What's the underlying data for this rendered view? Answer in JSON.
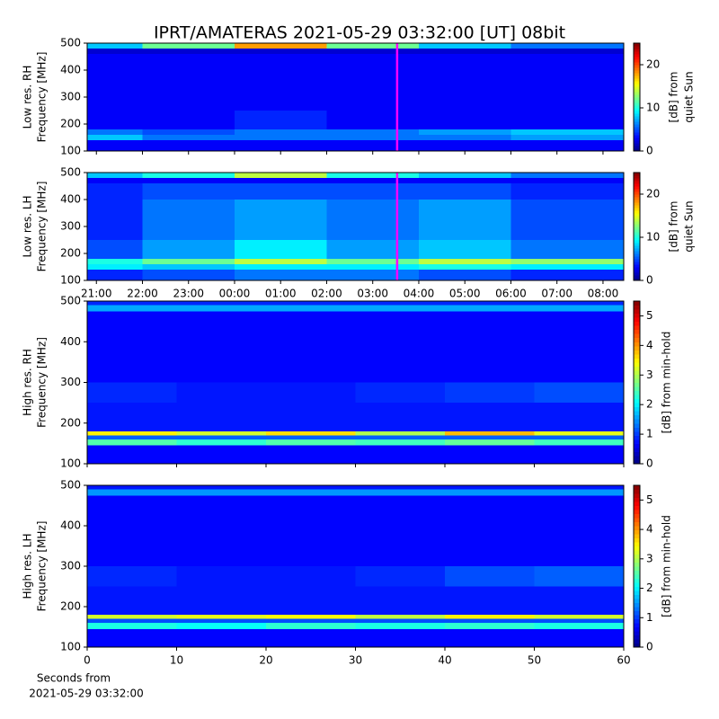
{
  "chart_data": [
    {
      "type": "heatmap",
      "title": "IPRT/AMATERAS 2021-05-29 03:32:00 [UT]   08bit",
      "ylabel": [
        "Low res. RH",
        "Frequency [MHz]"
      ],
      "ylim": [
        100,
        500
      ],
      "yticks": [
        100,
        200,
        300,
        400,
        500
      ],
      "xlim": [
        20.8,
        32.45
      ],
      "xticks": [
        21,
        22,
        23,
        24,
        25,
        26,
        27,
        28,
        29,
        30,
        31,
        32
      ],
      "xtick_labels": false,
      "x_edges": [
        20.8,
        22,
        24,
        26,
        28,
        30,
        32.45
      ],
      "y_edges": [
        100,
        140,
        160,
        180,
        250,
        400,
        460,
        480,
        500
      ],
      "values": [
        [
          3,
          3,
          3,
          3,
          3,
          3
        ],
        [
          8,
          6,
          6,
          6,
          6,
          7
        ],
        [
          6,
          5,
          6,
          6,
          7,
          8
        ],
        [
          3,
          3,
          4,
          3,
          3,
          3
        ],
        [
          3,
          3,
          3,
          3,
          3,
          3
        ],
        [
          3,
          3,
          3,
          3,
          3,
          3
        ],
        [
          2,
          2,
          2,
          2,
          2,
          2
        ],
        [
          8,
          12,
          18,
          12,
          8,
          6
        ]
      ],
      "colormap": "jet",
      "clim": [
        0,
        25
      ],
      "cticks": [
        0,
        10,
        20
      ],
      "colorbar_label": [
        "[dB] from",
        "quiet Sun"
      ],
      "vline": {
        "x": 27.53,
        "color": "#ff00ff"
      }
    },
    {
      "type": "heatmap",
      "ylabel": [
        "Low res. LH",
        "Frequency [MHz]"
      ],
      "ylim": [
        100,
        500
      ],
      "yticks": [
        100,
        200,
        300,
        400,
        500
      ],
      "xlim": [
        20.8,
        32.45
      ],
      "xticks": [
        {
          "value": 21,
          "label": "21:00"
        },
        {
          "value": 22,
          "label": "22:00"
        },
        {
          "value": 23,
          "label": "23:00"
        },
        {
          "value": 24,
          "label": "00:00"
        },
        {
          "value": 25,
          "label": "01:00"
        },
        {
          "value": 26,
          "label": "02:00"
        },
        {
          "value": 27,
          "label": "03:00"
        },
        {
          "value": 28,
          "label": "04:00"
        },
        {
          "value": 29,
          "label": "05:00"
        },
        {
          "value": 30,
          "label": "06:00"
        },
        {
          "value": 31,
          "label": "07:00"
        },
        {
          "value": 32,
          "label": "08:00"
        }
      ],
      "xtick_labels": true,
      "x_edges": [
        20.8,
        22,
        24,
        26,
        28,
        30,
        32.45
      ],
      "y_edges": [
        100,
        140,
        160,
        180,
        250,
        400,
        460,
        480,
        500
      ],
      "values": [
        [
          4,
          5,
          6,
          6,
          5,
          4
        ],
        [
          9,
          8,
          9,
          9,
          10,
          9
        ],
        [
          10,
          12,
          14,
          12,
          14,
          13
        ],
        [
          5,
          7,
          9,
          7,
          8,
          6
        ],
        [
          4,
          6,
          7,
          6,
          7,
          5
        ],
        [
          4,
          5,
          5,
          5,
          5,
          4
        ],
        [
          3,
          3,
          3,
          3,
          3,
          3
        ],
        [
          8,
          10,
          14,
          10,
          8,
          6
        ]
      ],
      "colormap": "jet",
      "clim": [
        0,
        25
      ],
      "cticks": [
        0,
        10,
        20
      ],
      "colorbar_label": [
        "[dB] from",
        "quiet Sun"
      ],
      "vline": {
        "x": 27.53,
        "color": "#ff00ff"
      }
    },
    {
      "type": "heatmap",
      "ylabel": [
        "High res. RH",
        "Frequency [MHz]"
      ],
      "ylim": [
        100,
        500
      ],
      "yticks": [
        100,
        200,
        300,
        400,
        500
      ],
      "xlim": [
        0,
        60
      ],
      "xticks": [
        0,
        10,
        20,
        30,
        40,
        50,
        60
      ],
      "xtick_labels": false,
      "x_edges": [
        0,
        10,
        20,
        30,
        40,
        50,
        60
      ],
      "y_edges": [
        100,
        145,
        160,
        170,
        180,
        250,
        300,
        475,
        490,
        500
      ],
      "values": [
        [
          0.7,
          0.7,
          0.7,
          0.7,
          0.7,
          0.7
        ],
        [
          2.5,
          2.3,
          2.5,
          2.4,
          2.6,
          2.4
        ],
        [
          1.2,
          1.2,
          1.2,
          1.2,
          1.2,
          1.2
        ],
        [
          3.5,
          3.2,
          3.6,
          3,
          3.8,
          3.3
        ],
        [
          0.8,
          0.8,
          0.8,
          0.8,
          0.8,
          0.8
        ],
        [
          0.9,
          0.8,
          0.8,
          0.9,
          1,
          1.1
        ],
        [
          0.7,
          0.7,
          0.7,
          0.7,
          0.7,
          0.7
        ],
        [
          1.6,
          1.6,
          1.6,
          1.6,
          1.6,
          1.6
        ],
        [
          0.9,
          0.9,
          0.9,
          0.9,
          0.9,
          0.9
        ]
      ],
      "colormap": "jet",
      "clim": [
        0,
        5.5
      ],
      "cticks": [
        0,
        1,
        2,
        3,
        4,
        5
      ],
      "colorbar_label": [
        "[dB] from min-hold"
      ]
    },
    {
      "type": "heatmap",
      "ylabel": [
        "High res. LH",
        "Frequency [MHz]"
      ],
      "ylim": [
        100,
        500
      ],
      "yticks": [
        100,
        200,
        300,
        400,
        500
      ],
      "xlim": [
        0,
        60
      ],
      "xticks": [
        0,
        10,
        20,
        30,
        40,
        50,
        60
      ],
      "xtick_labels": true,
      "xlabel": [
        "Seconds from",
        "2021-05-29 03:32:00"
      ],
      "x_edges": [
        0,
        10,
        20,
        30,
        40,
        50,
        60
      ],
      "y_edges": [
        100,
        145,
        160,
        170,
        180,
        250,
        300,
        475,
        490,
        500
      ],
      "values": [
        [
          0.7,
          0.7,
          0.7,
          0.7,
          0.7,
          0.7
        ],
        [
          2.2,
          2.1,
          2.3,
          2.2,
          2.3,
          2.2
        ],
        [
          1.1,
          1.1,
          1.1,
          1.1,
          1.1,
          1.1
        ],
        [
          3.2,
          3.3,
          3.4,
          3.1,
          3.5,
          3.2
        ],
        [
          0.8,
          0.8,
          0.8,
          0.8,
          0.8,
          0.8
        ],
        [
          0.9,
          0.8,
          0.8,
          0.9,
          1.1,
          1.2
        ],
        [
          0.7,
          0.7,
          0.7,
          0.7,
          0.7,
          0.7
        ],
        [
          1.5,
          1.5,
          1.5,
          1.5,
          1.5,
          1.5
        ],
        [
          0.8,
          0.8,
          0.8,
          0.8,
          0.8,
          0.8
        ]
      ],
      "colormap": "jet",
      "clim": [
        0,
        5.5
      ],
      "cticks": [
        0,
        1,
        2,
        3,
        4,
        5
      ],
      "colorbar_label": [
        "[dB] from min-hold"
      ]
    }
  ]
}
